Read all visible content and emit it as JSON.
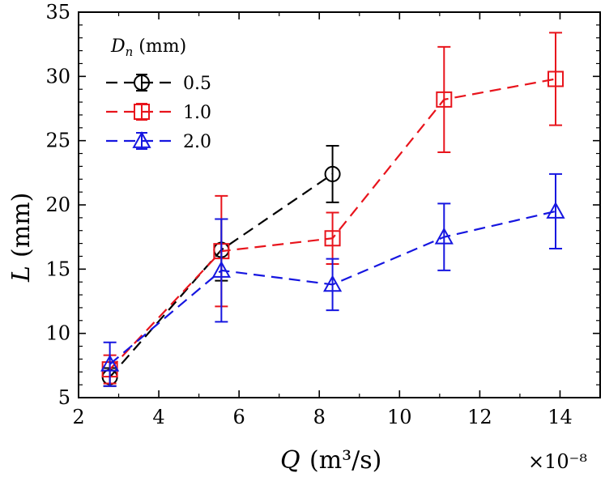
{
  "chart_data": {
    "type": "line",
    "xlabel": {
      "var": "Q",
      "unit": "(m³/s)"
    },
    "ylabel": {
      "var": "L",
      "unit": "(mm)"
    },
    "x_multiplier": "×10⁻⁸",
    "xlim": [
      2,
      15
    ],
    "ylim": [
      5,
      35
    ],
    "xticks": [
      2,
      4,
      6,
      8,
      10,
      12,
      14
    ],
    "yticks": [
      5,
      10,
      15,
      20,
      25,
      30,
      35
    ],
    "legend": {
      "title_var": "D",
      "title_sub": "n",
      "title_unit": " (mm)",
      "placement": "top-left"
    },
    "series": [
      {
        "name": "0.5",
        "color": "#000000",
        "marker": "circle",
        "x": [
          2.78,
          5.56,
          8.33
        ],
        "y": [
          6.6,
          16.5,
          22.4
        ],
        "err": [
          0.7,
          2.4,
          2.2
        ]
      },
      {
        "name": "1.0",
        "color": "#e8141c",
        "marker": "square",
        "x": [
          2.78,
          5.56,
          8.33,
          11.11,
          13.89
        ],
        "y": [
          7.2,
          16.4,
          17.4,
          28.2,
          29.8
        ],
        "err": [
          1.1,
          4.3,
          2.0,
          4.1,
          3.6
        ]
      },
      {
        "name": "2.0",
        "color": "#1616e0",
        "marker": "triangle",
        "x": [
          2.78,
          5.56,
          8.33,
          11.11,
          13.89
        ],
        "y": [
          7.6,
          14.9,
          13.8,
          17.5,
          19.5
        ],
        "err": [
          1.7,
          4.0,
          2.0,
          2.6,
          2.9
        ]
      }
    ]
  }
}
